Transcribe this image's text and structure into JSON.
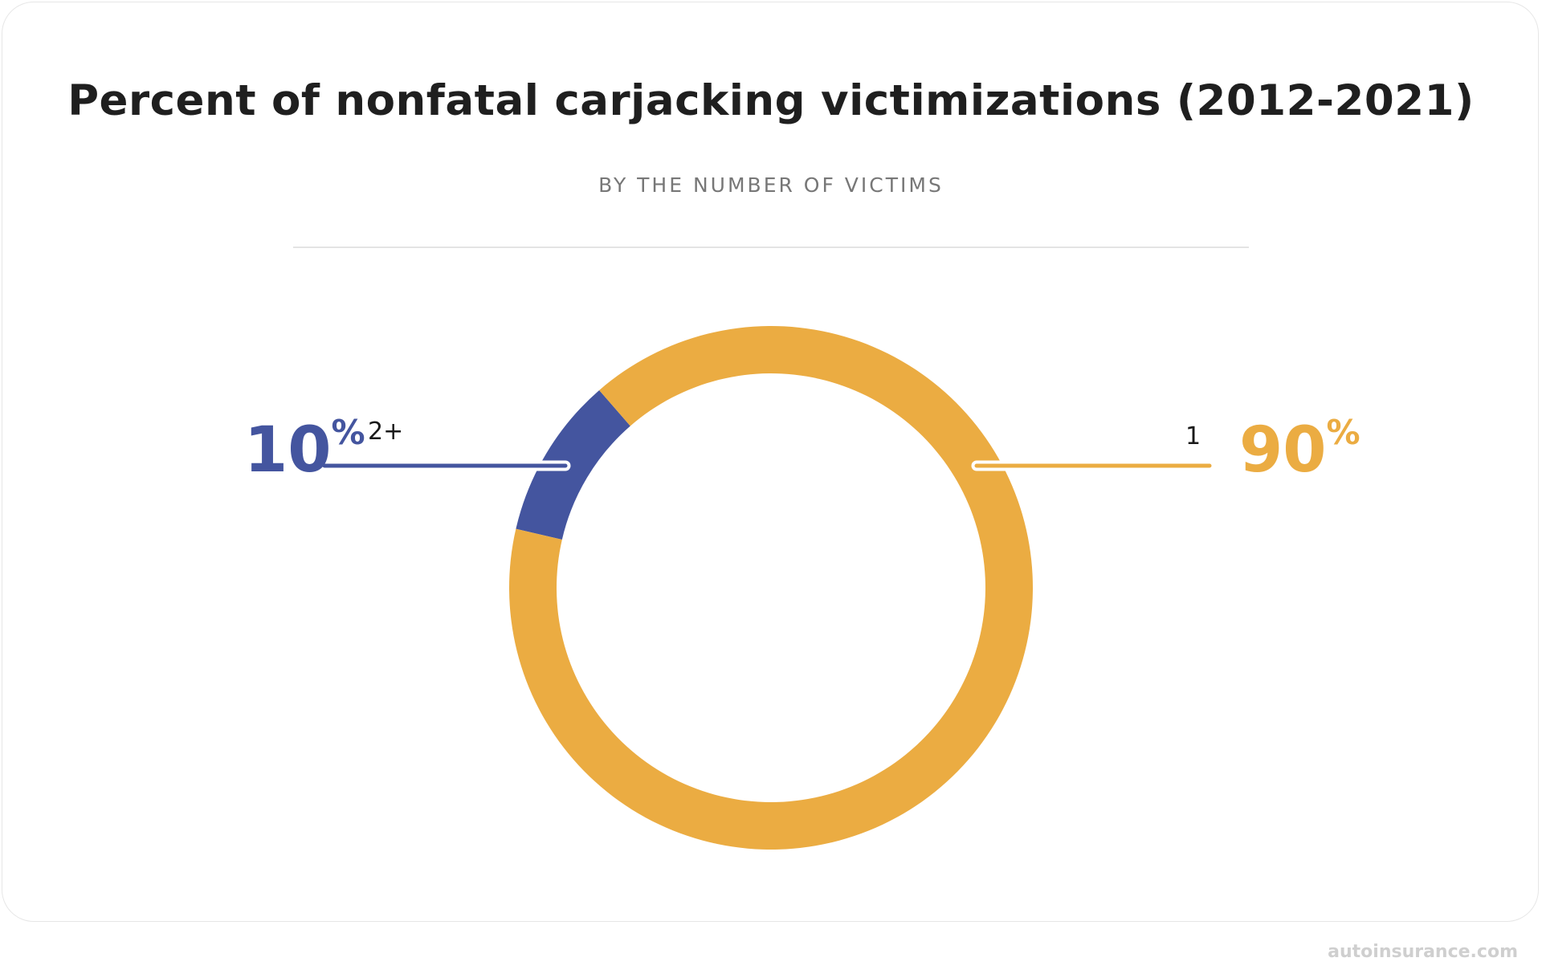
{
  "chart_data": {
    "type": "pie",
    "style": "donut",
    "title": "Percent of nonfatal carjacking victimizations (2012-2021)",
    "subtitle": "BY THE NUMBER OF VICTIMS",
    "categories": [
      "2+",
      "1"
    ],
    "values": [
      10,
      90
    ],
    "value_labels": [
      "10",
      "90"
    ],
    "unit": "%",
    "colors": [
      "#44559f",
      "#ebac42"
    ]
  },
  "branding": {
    "logo": "autoinsurance.com"
  }
}
